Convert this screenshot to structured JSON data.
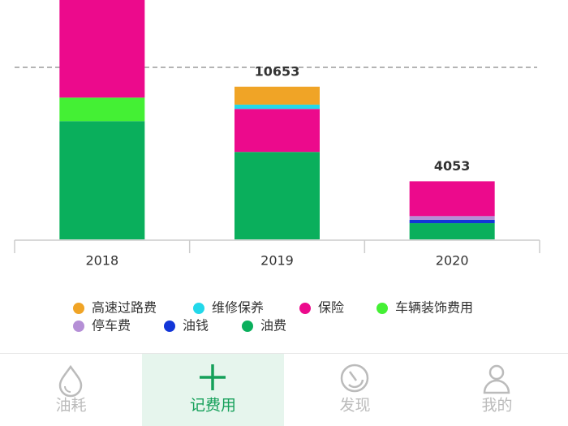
{
  "chart_data": {
    "type": "stacked_bar",
    "categories": [
      "2018",
      "2019",
      "2020"
    ],
    "series": [
      {
        "name": "高速过路费",
        "color": "#f0a426",
        "values": [
          0,
          1253,
          0
        ]
      },
      {
        "name": "维修保养",
        "color": "#22d8ea",
        "values": [
          0,
          300,
          0
        ]
      },
      {
        "name": "保险",
        "color": "#ec0a8c",
        "values": [
          7500,
          3000,
          2430
        ]
      },
      {
        "name": "车辆装饰费用",
        "color": "#44f034",
        "values": [
          1640,
          0,
          0
        ]
      },
      {
        "name": "停车费",
        "color": "#b58fd6",
        "values": [
          0,
          0,
          263
        ]
      },
      {
        "name": "油钱",
        "color": "#1236d8",
        "values": [
          0,
          0,
          230
        ]
      },
      {
        "name": "油费",
        "color": "#0aaf5c",
        "values": [
          8250,
          6100,
          1130
        ]
      }
    ],
    "totals": [
      null,
      10653,
      4053
    ],
    "reference_line": 12000,
    "ylim": [
      0,
      16700
    ]
  },
  "nav": {
    "items": [
      "油耗",
      "记费用",
      "发现",
      "我的"
    ],
    "active": 1
  }
}
